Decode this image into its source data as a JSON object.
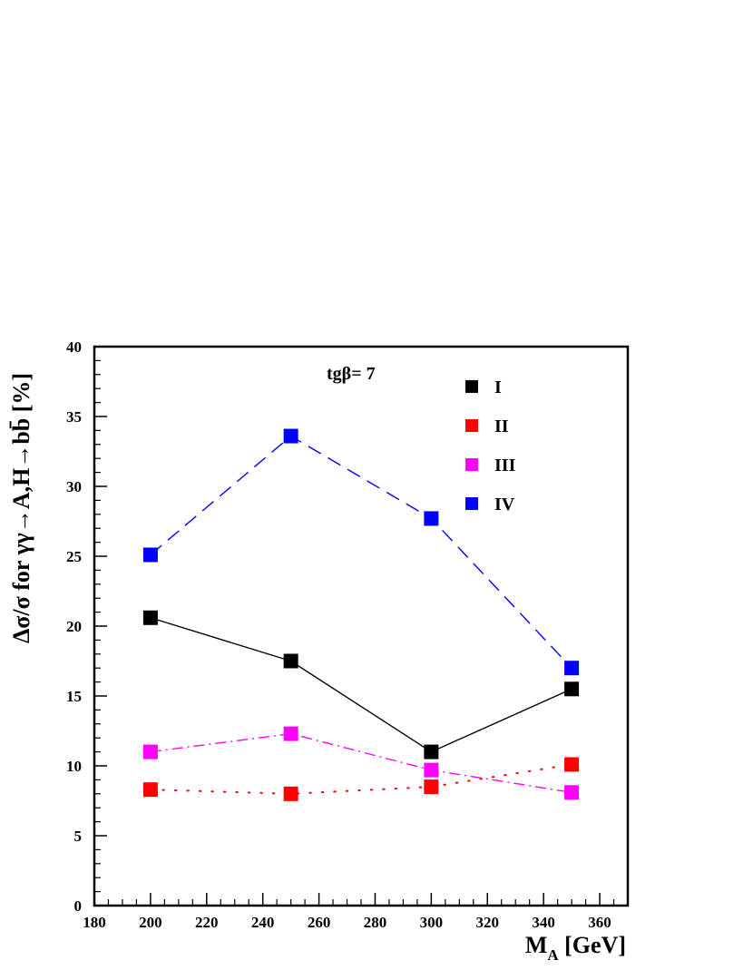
{
  "chart_data": {
    "type": "line",
    "xlabel": "M",
    "xlabel_sub": "A",
    "xlabel_unit": "[GeV]",
    "ylabel": "Δσ/σ   for   γγ→A,H→bb̄  [%]",
    "annotation": "tgβ= 7",
    "xlim": [
      180,
      370
    ],
    "ylim": [
      0,
      40
    ],
    "x_ticks": [
      180,
      200,
      220,
      240,
      260,
      280,
      300,
      320,
      340,
      360
    ],
    "y_ticks": [
      0,
      5,
      10,
      15,
      20,
      25,
      30,
      35,
      40
    ],
    "x": [
      200,
      250,
      300,
      350
    ],
    "legend_position": "top-right",
    "grid": false,
    "series": [
      {
        "name": "I",
        "values": [
          20.6,
          17.5,
          11.0,
          15.5
        ],
        "color": "#000000",
        "line": "solid"
      },
      {
        "name": "II",
        "values": [
          8.3,
          8.0,
          8.5,
          10.1
        ],
        "color": "#ff0000",
        "line": "dotted"
      },
      {
        "name": "III",
        "values": [
          11.0,
          12.3,
          9.7,
          8.1
        ],
        "color": "#ff00ff",
        "line": "dashdot"
      },
      {
        "name": "IV",
        "values": [
          25.1,
          33.6,
          27.7,
          17.0
        ],
        "color": "#0000ff",
        "line": "dashed"
      }
    ]
  }
}
